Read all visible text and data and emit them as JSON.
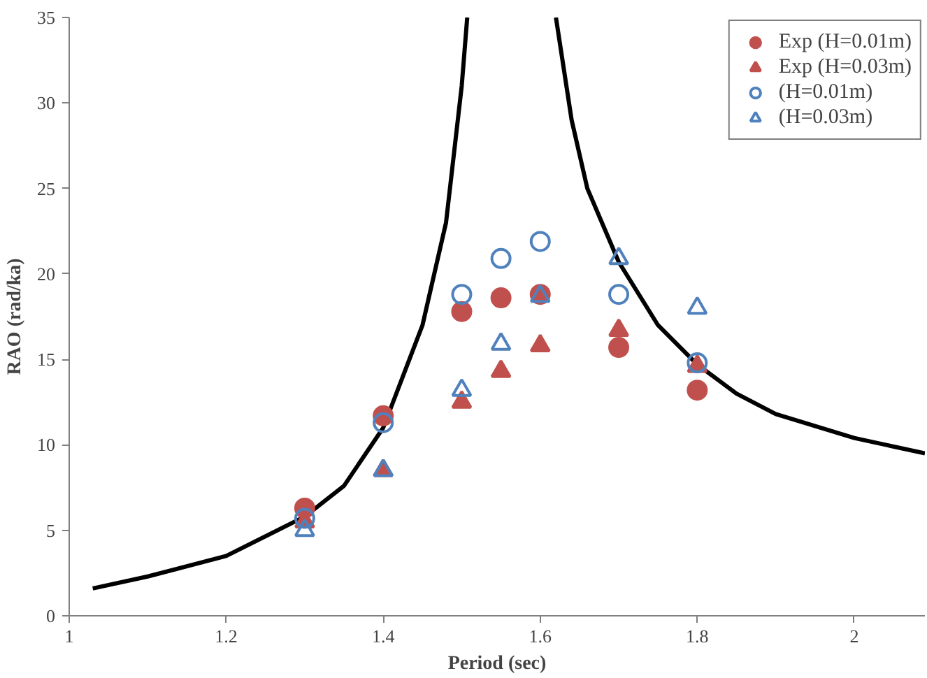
{
  "chart_data": {
    "type": "scatter",
    "xlabel": "Period (sec)",
    "ylabel": "RAO (rad/ka)",
    "xlim": [
      1,
      2.09
    ],
    "ylim": [
      0,
      35
    ],
    "xticks": [
      1,
      1.2,
      1.4,
      1.6,
      1.8,
      2
    ],
    "yticks": [
      0,
      5,
      10,
      15,
      20,
      25,
      30,
      35
    ],
    "grid": false,
    "legend": "top right",
    "series": [
      {
        "type": "line",
        "color": "#000000",
        "line_style": "solid",
        "marker": "none",
        "x": [
          1.03,
          1.1,
          1.2,
          1.3,
          1.35,
          1.4,
          1.45,
          1.48,
          1.5,
          1.507,
          null,
          1.62,
          1.64,
          1.66,
          1.7,
          1.75,
          1.8,
          1.85,
          1.9,
          2.0,
          2.09
        ],
        "values": [
          1.6,
          2.3,
          3.5,
          5.8,
          7.6,
          11.0,
          17,
          23,
          31,
          35,
          null,
          35,
          29,
          25,
          20.7,
          17,
          14.7,
          13,
          11.8,
          10.4,
          9.5
        ]
      },
      {
        "name": "Exp (H=0.01m)",
        "color": "#c0504d",
        "marker": "circle",
        "x": [
          1.3,
          1.4,
          1.5,
          1.55,
          1.6,
          1.7,
          1.8
        ],
        "values": [
          6.3,
          11.7,
          17.8,
          18.6,
          18.8,
          15.7,
          13.2
        ]
      },
      {
        "name": "Exp (H=0.03m)",
        "color": "#c0504d",
        "marker": "triangle",
        "x": [
          1.3,
          1.4,
          1.5,
          1.55,
          1.6,
          1.7,
          1.8
        ],
        "values": [
          5.5,
          8.5,
          12.5,
          14.3,
          15.8,
          16.7,
          14.6
        ]
      },
      {
        "name": "(H=0.01m)",
        "color": "#4f81bd",
        "marker": "circle",
        "x": [
          1.3,
          1.4,
          1.5,
          1.55,
          1.6,
          1.7,
          1.8
        ],
        "values": [
          5.7,
          11.3,
          18.8,
          20.9,
          21.9,
          18.8,
          14.8
        ]
      },
      {
        "name": "(H=0.03m)",
        "color": "#4f81bd",
        "marker": "triangle",
        "x": [
          1.3,
          1.4,
          1.5,
          1.55,
          1.6,
          1.7,
          1.8
        ],
        "values": [
          5.0,
          8.5,
          13.2,
          15.9,
          18.7,
          20.9,
          18.0
        ]
      }
    ]
  }
}
